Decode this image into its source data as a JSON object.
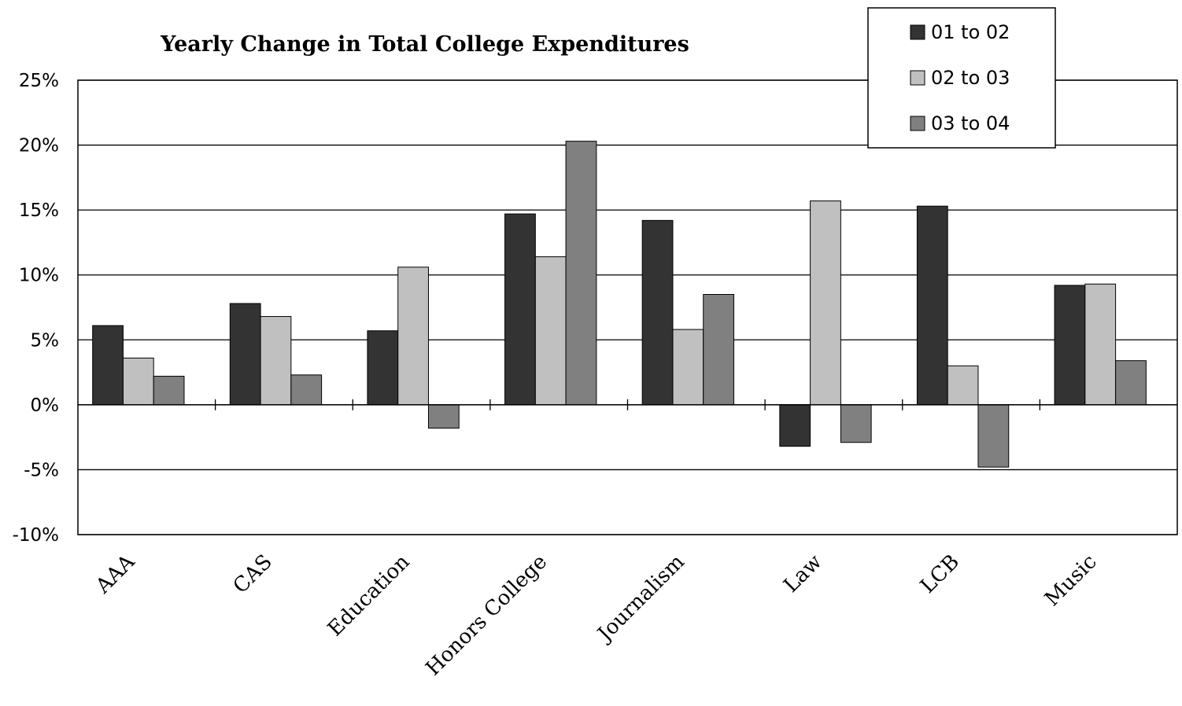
{
  "chart_data": {
    "type": "bar",
    "title": "Yearly Change in Total College Expenditures",
    "xlabel": "",
    "ylabel": "",
    "ylim": [
      -10,
      25
    ],
    "y_ticks": [
      "25%",
      "20%",
      "15%",
      "10%",
      "5%",
      "0%",
      "-5%",
      "-10%"
    ],
    "categories": [
      "AAA",
      "CAS",
      "Education",
      "Honors College",
      "Journalism",
      "Law",
      "LCB",
      "Music"
    ],
    "series": [
      {
        "name": "01 to 02",
        "color": "#333333",
        "values": [
          6.1,
          7.8,
          5.7,
          14.7,
          14.2,
          -3.2,
          15.3,
          9.2
        ]
      },
      {
        "name": "02 to 03",
        "color": "#c0c0c0",
        "values": [
          3.6,
          6.8,
          10.6,
          11.4,
          5.8,
          15.7,
          3.0,
          9.3
        ]
      },
      {
        "name": "03 to 04",
        "color": "#808080",
        "values": [
          2.2,
          2.3,
          -1.8,
          20.3,
          8.5,
          -2.9,
          -4.8,
          3.4
        ]
      }
    ],
    "grid": true,
    "legend_position": "top-right"
  }
}
